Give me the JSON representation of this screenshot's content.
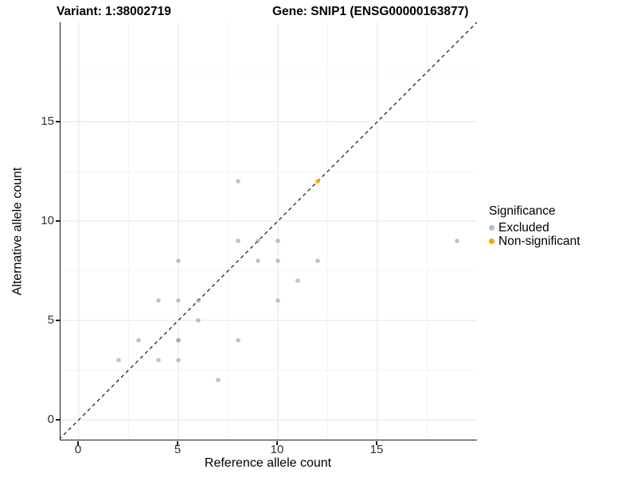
{
  "titles": {
    "variant": "Variant: 1:38002719",
    "gene": "Gene: SNIP1 (ENSG00000163877)"
  },
  "axes": {
    "x": {
      "label": "Reference allele count",
      "ticks": [
        0,
        5,
        10,
        15
      ],
      "tick_labels": [
        "0",
        "5",
        "10",
        "15"
      ]
    },
    "y": {
      "label": "Alternative allele count",
      "ticks": [
        0,
        5,
        10,
        15
      ],
      "tick_labels": [
        "0",
        "5",
        "10",
        "15"
      ]
    }
  },
  "legend": {
    "title": "Significance",
    "items": [
      {
        "label": "Excluded",
        "color": "#BBBBBB"
      },
      {
        "label": "Non-significant",
        "color": "#FFA500"
      }
    ]
  },
  "chart_data": {
    "type": "scatter",
    "title": "Variant: 1:38002719 | Gene: SNIP1 (ENSG00000163877)",
    "xlabel": "Reference allele count",
    "ylabel": "Alternative allele count",
    "xlim": [
      -1,
      20
    ],
    "ylim": [
      -1,
      20
    ],
    "x_ticks": [
      0,
      5,
      10,
      15
    ],
    "y_ticks": [
      0,
      5,
      10,
      15
    ],
    "minor_gridlines": [
      2.5,
      7.5,
      12.5,
      17.5
    ],
    "grid": "on",
    "legend_position": "right",
    "identity_line": {
      "style": "dashed",
      "color": "#1a1a1a",
      "from": [
        -1,
        -1
      ],
      "to": [
        20,
        20
      ]
    },
    "series": [
      {
        "name": "Excluded",
        "color": "#999999",
        "opacity": 0.6,
        "points": [
          [
            2,
            3
          ],
          [
            3,
            4
          ],
          [
            4,
            3
          ],
          [
            4,
            6
          ],
          [
            5,
            3
          ],
          [
            5,
            4
          ],
          [
            5,
            4
          ],
          [
            5,
            6
          ],
          [
            5,
            8
          ],
          [
            6,
            5
          ],
          [
            6,
            6
          ],
          [
            7,
            2
          ],
          [
            8,
            4
          ],
          [
            8,
            9
          ],
          [
            8,
            12
          ],
          [
            9,
            8
          ],
          [
            9,
            9
          ],
          [
            10,
            6
          ],
          [
            10,
            8
          ],
          [
            10,
            9
          ],
          [
            11,
            7
          ],
          [
            12,
            8
          ],
          [
            19,
            9
          ]
        ]
      },
      {
        "name": "Non-significant",
        "color": "#FFA500",
        "opacity": 0.88,
        "points": [
          [
            12,
            12
          ]
        ]
      }
    ]
  },
  "colors": {
    "grid_major": "#E6E6E6",
    "grid_minor": "#F1F1F1",
    "axis_line": "#1a1a1a"
  }
}
